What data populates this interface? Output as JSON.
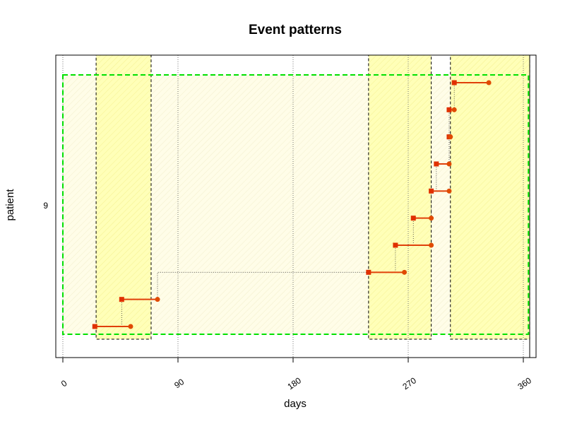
{
  "chart_data": {
    "type": "scatter",
    "title": "Event patterns",
    "xlabel": "days",
    "ylabel": "patient",
    "xlim": [
      0,
      360
    ],
    "x_ticks": [
      0,
      90,
      180,
      270,
      360
    ],
    "y_categories": [
      "9"
    ],
    "grid": "vertical dotted at x ticks",
    "colors": {
      "segment": "#e0400a",
      "start_marker": "#e03000",
      "end_marker": "#e04a00",
      "band_fill": "#ffffb8",
      "band_light_fill": "#fffde8",
      "outline_green": "#00e000"
    },
    "overall_window": {
      "start": 0,
      "end": 364
    },
    "highlight_bands": [
      {
        "start": 26,
        "end": 69
      },
      {
        "start": 239,
        "end": 288
      },
      {
        "start": 303,
        "end": 365
      }
    ],
    "events": [
      {
        "start": 25,
        "end": 53
      },
      {
        "start": 46,
        "end": 74
      },
      {
        "start": 239,
        "end": 267
      },
      {
        "start": 260,
        "end": 288
      },
      {
        "start": 274,
        "end": 288
      },
      {
        "start": 288,
        "end": 302
      },
      {
        "start": 292,
        "end": 302
      },
      {
        "start": 302,
        "end": 303
      },
      {
        "start": 302,
        "end": 306
      },
      {
        "start": 306,
        "end": 333
      }
    ]
  }
}
